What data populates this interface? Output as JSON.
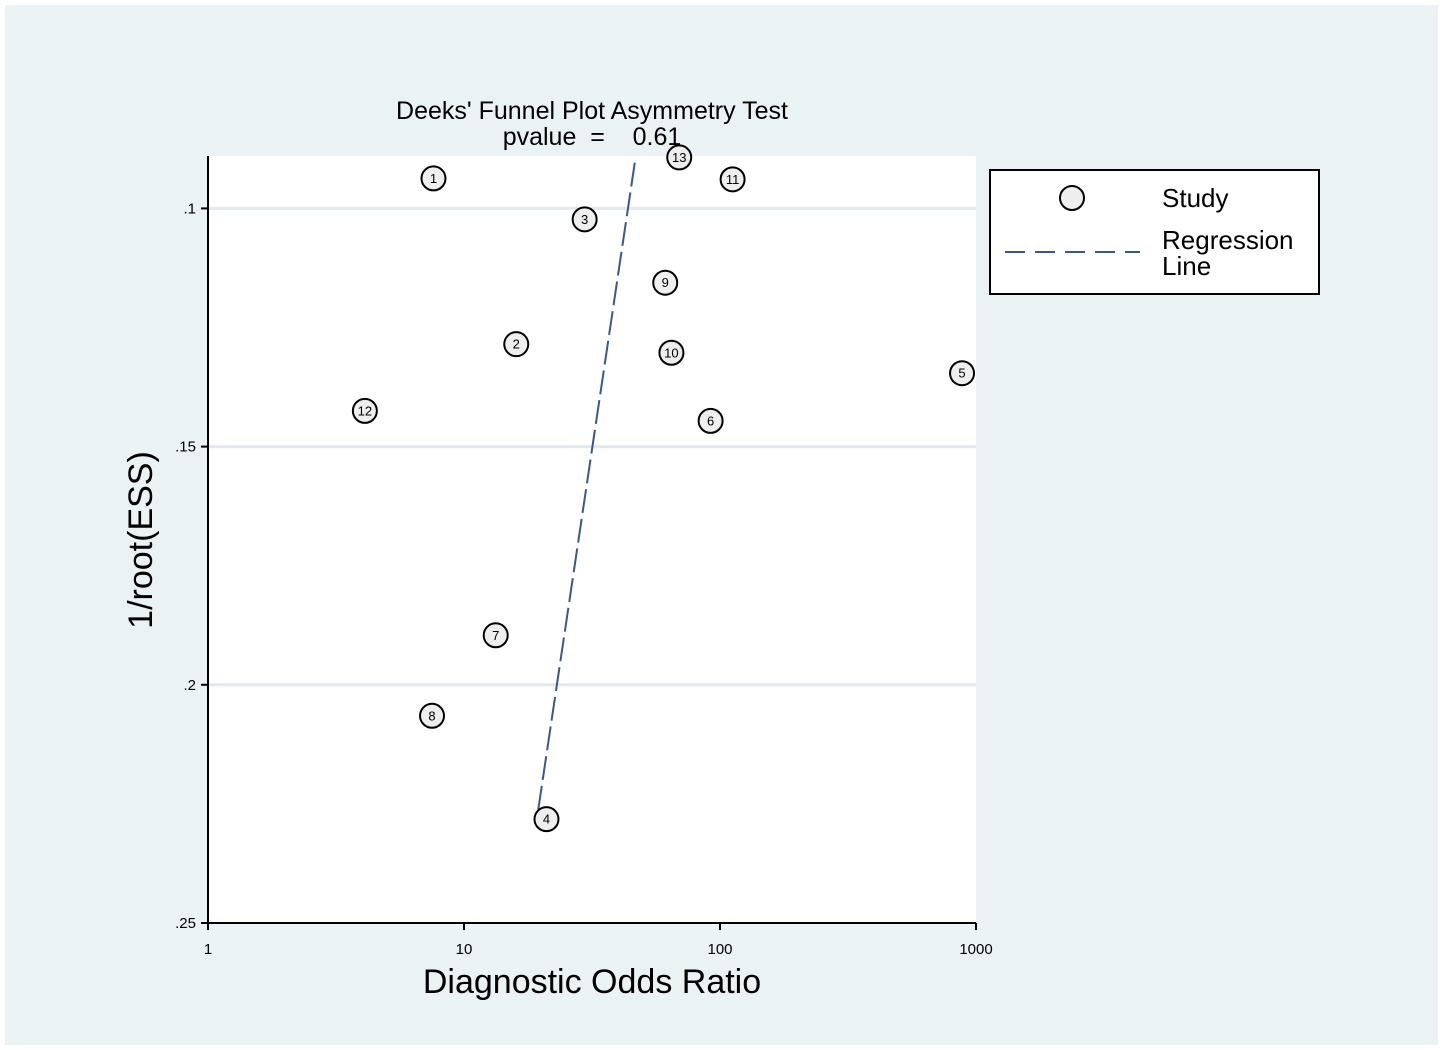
{
  "chart_data": {
    "type": "scatter",
    "title": "Deeks' Funnel Plot Asymmetry Test",
    "subtitle": "pvalue  =    0.61",
    "xlabel": "Diagnostic Odds Ratio",
    "ylabel": "1/root(ESS)",
    "x_scale": "log",
    "xlim": [
      1,
      1000
    ],
    "ylim": [
      0.25,
      0.089
    ],
    "y_reversed": true,
    "grid": true,
    "x_ticks": [
      {
        "value": 1,
        "label": "1"
      },
      {
        "value": 10,
        "label": "10"
      },
      {
        "value": 100,
        "label": "100"
      },
      {
        "value": 1000,
        "label": "1000"
      }
    ],
    "y_ticks": [
      {
        "value": 0.1,
        "label": ".1"
      },
      {
        "value": 0.15,
        "label": ".15"
      },
      {
        "value": 0.2,
        "label": ".2"
      },
      {
        "value": 0.25,
        "label": ".25"
      }
    ],
    "series": [
      {
        "name": "Study",
        "points": [
          {
            "label": "1",
            "x": 7.6,
            "y": 0.0937
          },
          {
            "label": "2",
            "x": 16.0,
            "y": 0.1285
          },
          {
            "label": "3",
            "x": 29.6,
            "y": 0.1023
          },
          {
            "label": "4",
            "x": 21.0,
            "y": 0.2282
          },
          {
            "label": "5",
            "x": 882,
            "y": 0.1346
          },
          {
            "label": "6",
            "x": 91.9,
            "y": 0.1446
          },
          {
            "label": "7",
            "x": 13.3,
            "y": 0.1896
          },
          {
            "label": "8",
            "x": 7.5,
            "y": 0.2065
          },
          {
            "label": "9",
            "x": 61.1,
            "y": 0.1156
          },
          {
            "label": "10",
            "x": 64.6,
            "y": 0.1303
          },
          {
            "label": "11",
            "x": 112,
            "y": 0.0939
          },
          {
            "label": "12",
            "x": 4.1,
            "y": 0.1425
          },
          {
            "label": "13",
            "x": 69.3,
            "y": 0.0893
          }
        ]
      },
      {
        "name": "Regression Line",
        "line": [
          {
            "x": 19.5,
            "y": 0.2262
          },
          {
            "x": 46.8,
            "y": 0.0893
          }
        ]
      }
    ],
    "legend": {
      "position": "right",
      "items": [
        {
          "label_lines": [
            "Study"
          ],
          "symbol": "circle"
        },
        {
          "label_lines": [
            "Regression",
            "Line"
          ],
          "symbol": "dashed-line"
        }
      ]
    },
    "colors": {
      "background": "#eaf2f3",
      "plot_area": "#ffffff",
      "grid": "#e0eaec",
      "marker_fill": "#eeeeee",
      "regression_line": "#3a5890"
    }
  }
}
